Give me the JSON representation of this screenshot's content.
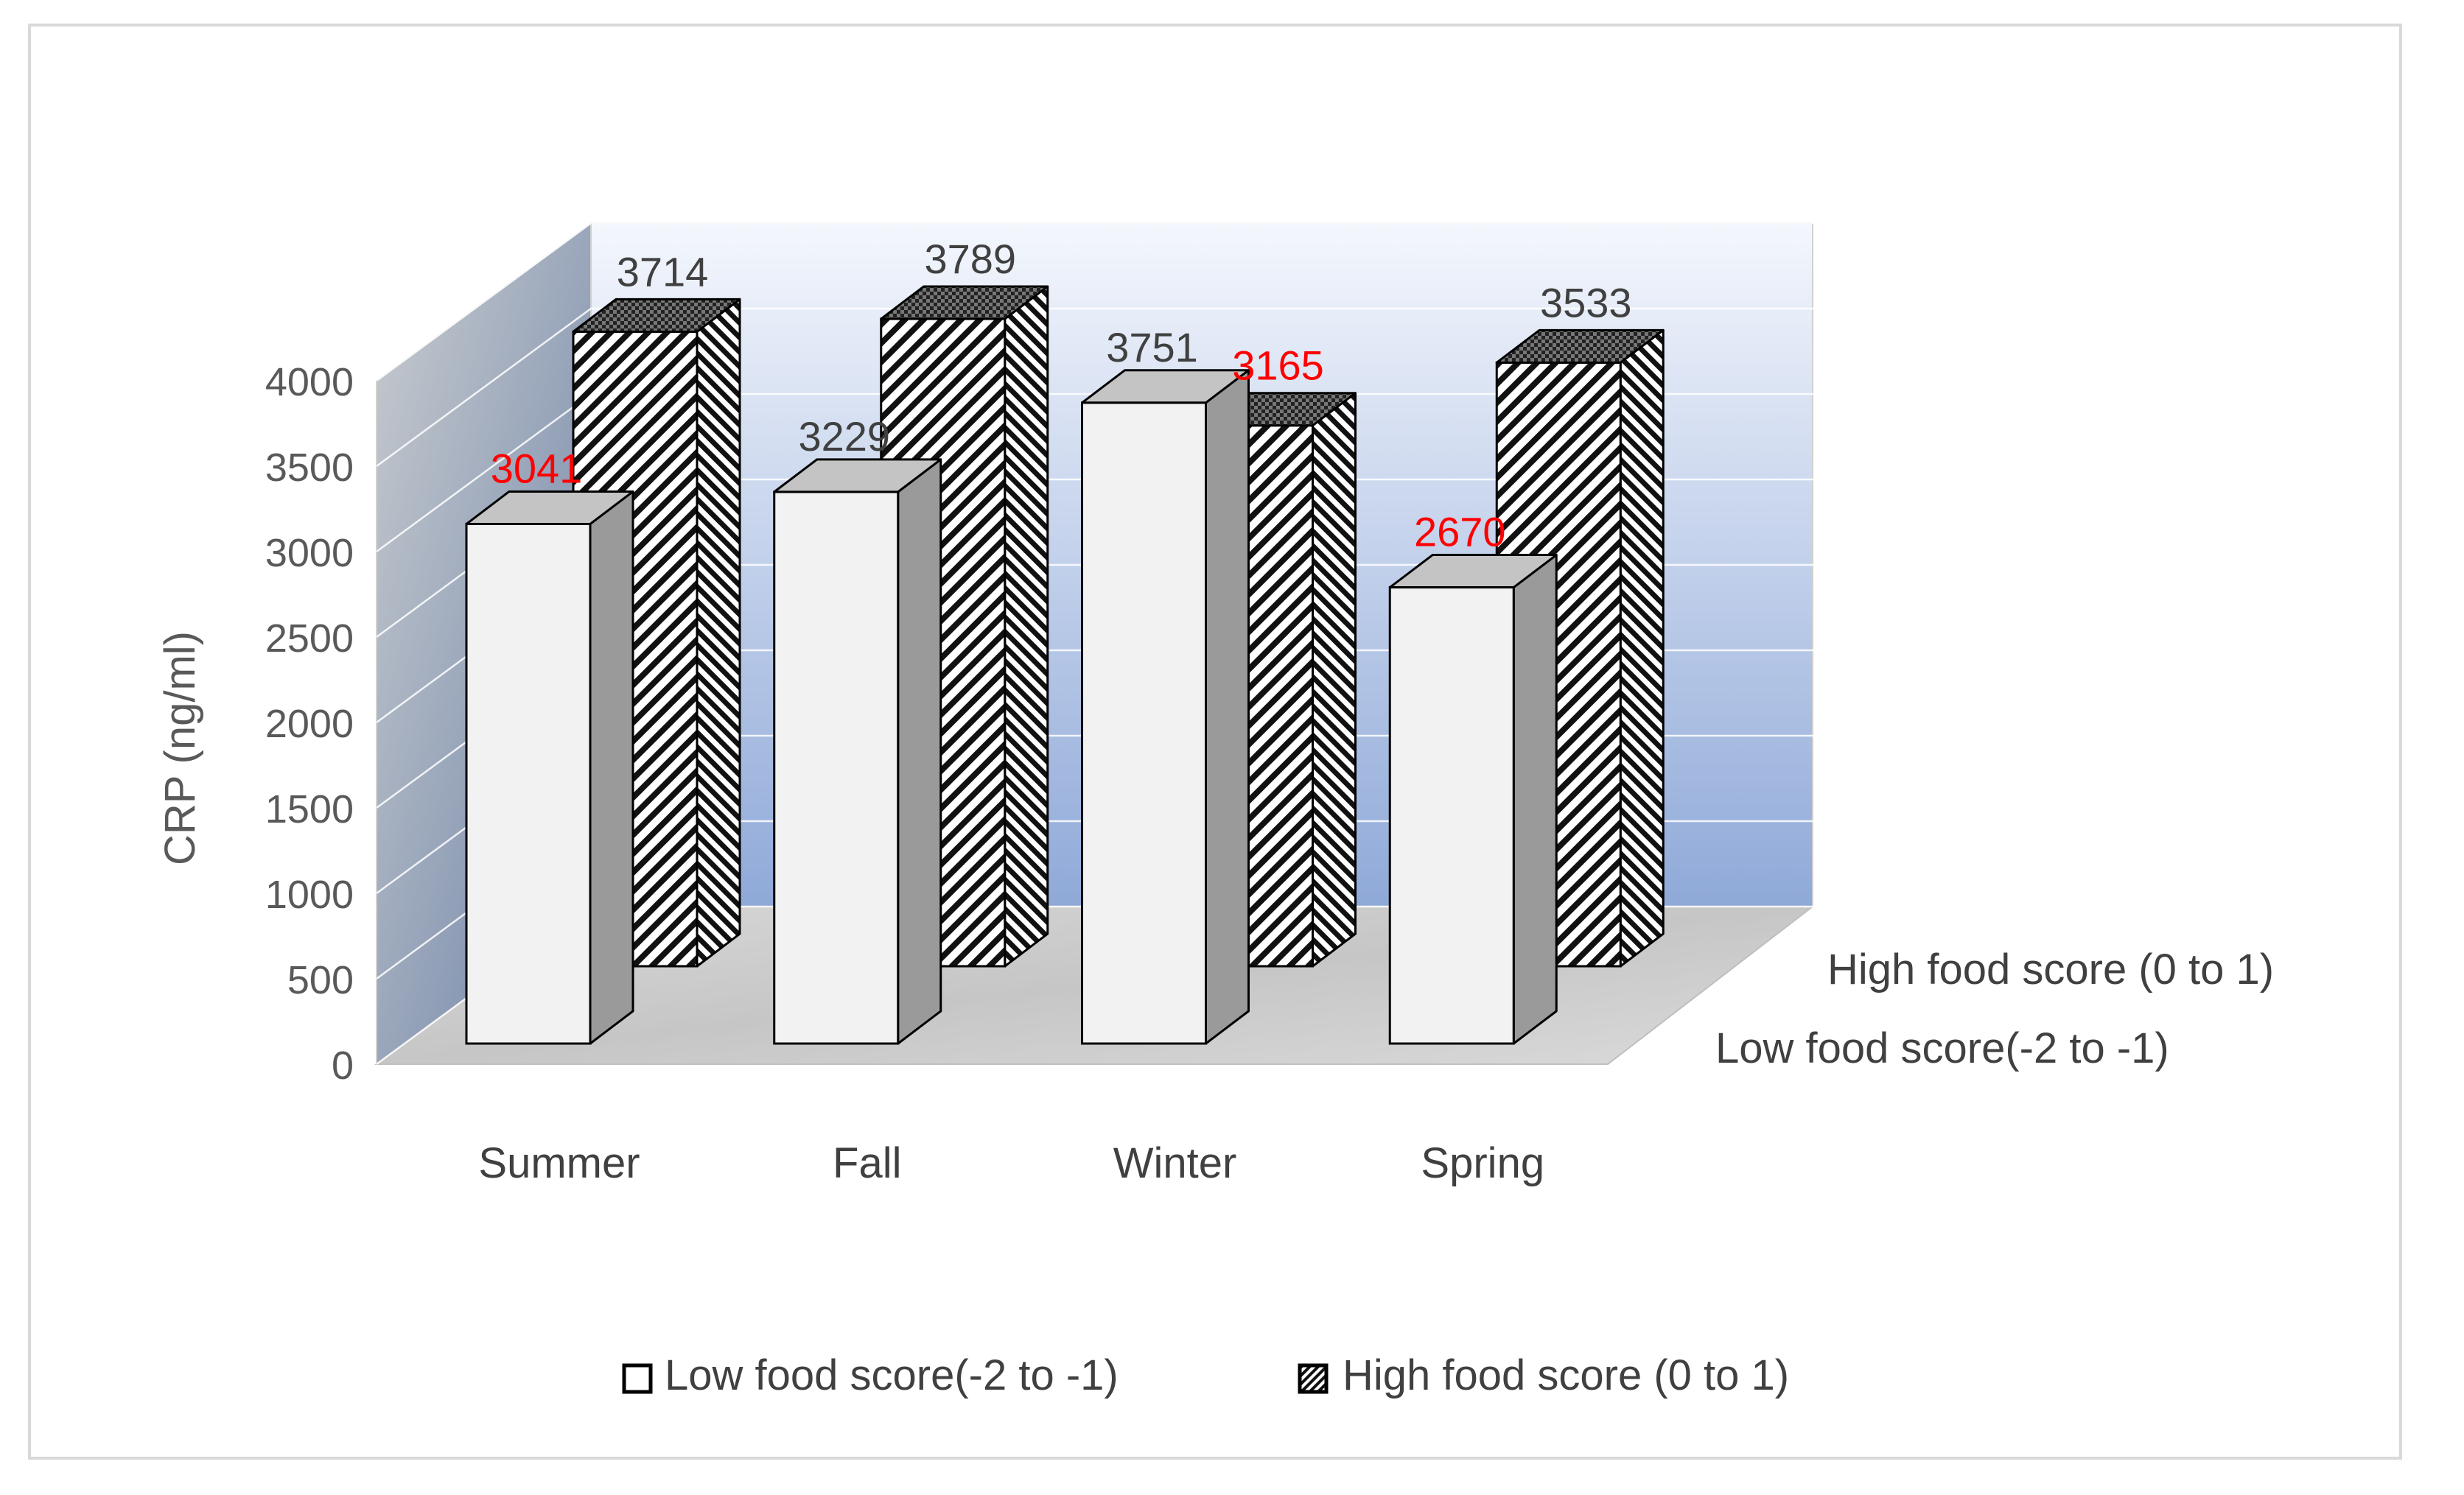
{
  "chart_data": {
    "type": "bar",
    "title": "",
    "xlabel": "",
    "ylabel": "CRP (ng/ml)",
    "ylim": [
      0,
      4000
    ],
    "yticks": [
      0,
      500,
      1000,
      1500,
      2000,
      2500,
      3000,
      3500,
      4000
    ],
    "categories": [
      "Summer",
      "Fall",
      "Winter",
      "Spring"
    ],
    "series": [
      {
        "name": "Low food score(-2 to -1)",
        "values": [
          3041,
          3229,
          3751,
          2670
        ],
        "label_colors": [
          "#ff0000",
          "#404040",
          "#404040",
          "#ff0000"
        ]
      },
      {
        "name": "High food score (0 to 1)",
        "values": [
          3714,
          3789,
          3165,
          3533
        ],
        "label_colors": [
          "#404040",
          "#404040",
          "#ff0000",
          "#404040"
        ]
      }
    ],
    "depth_axis_labels": [
      "High food score (0 to 1)",
      "Low food score(-2 to -1)"
    ],
    "legend_position": "bottom",
    "grid": true,
    "style": "3d-column",
    "colors": {
      "low_front": "#f2f2f2",
      "low_side": "#9a9a9a",
      "low_top": "#c4c4c4",
      "high_pattern": "diagonal-hatch-black",
      "text": "#404040",
      "highlight": "#ff0000"
    }
  }
}
